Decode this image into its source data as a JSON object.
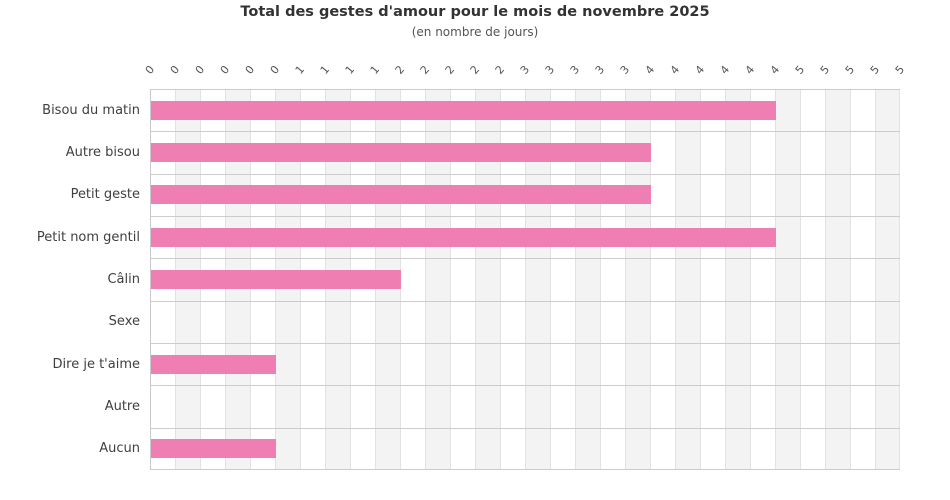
{
  "chart_data": {
    "type": "bar",
    "orientation": "horizontal",
    "title": "Total des gestes d'amour pour le mois de novembre 2025",
    "subtitle": "(en nombre de jours)",
    "categories": [
      "Bisou du matin",
      "Autre bisou",
      "Petit geste",
      "Petit nom gentil",
      "Câlin",
      "Sexe",
      "Dire je t'aime",
      "Autre",
      "Aucun"
    ],
    "values_grid_ticks": [
      25,
      20,
      20,
      25,
      10,
      0,
      5,
      0,
      5
    ],
    "values_axis_units": [
      4.17,
      3.33,
      3.33,
      4.17,
      1.67,
      0,
      0.83,
      0,
      0.83
    ],
    "x_axis": {
      "tick_count": 31,
      "tick_labels": [
        "0",
        "0",
        "0",
        "0",
        "0",
        "0",
        "1",
        "1",
        "1",
        "1",
        "2",
        "2",
        "2",
        "2",
        "2",
        "3",
        "3",
        "3",
        "3",
        "3",
        "4",
        "4",
        "4",
        "4",
        "4",
        "4",
        "5",
        "5",
        "5",
        "5",
        "5"
      ],
      "label_rotation_deg": -50,
      "position": "top"
    },
    "grid": {
      "vertical_gridlines": true,
      "horizontal_row_separators": true,
      "alternating_column_stripes": true
    },
    "legend": {
      "visible": false
    },
    "colors": {
      "bar": "#ef7eb3",
      "column_stripe": "#f3f3f3",
      "vertical_gridline": "#e2e2e2",
      "horizontal_gridline": "#cccccc",
      "axis_line": "#c9c9c9",
      "title_text": "#333333",
      "subtitle_text": "#555555",
      "category_text": "#404040",
      "tick_text": "#555555",
      "background": "#ffffff"
    }
  }
}
